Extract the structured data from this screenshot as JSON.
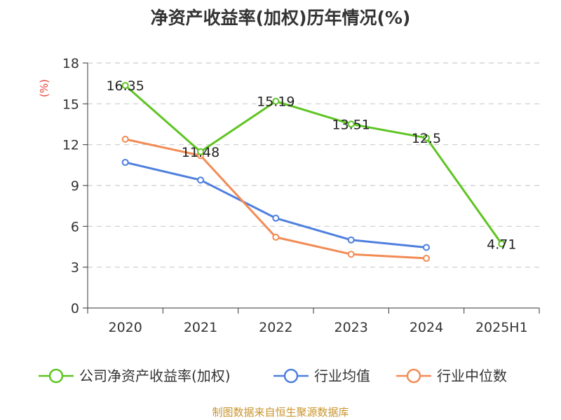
{
  "title": "净资产收益率(加权)历年情况(%)",
  "source": "制图数据来自恒生聚源数据库",
  "chart_data": {
    "type": "line",
    "title": "净资产收益率(加权)历年情况(%)",
    "ylabel": "(%)",
    "ylim": [
      0,
      18
    ],
    "yticks": [
      0,
      3,
      6,
      9,
      12,
      15,
      18
    ],
    "categories": [
      "2020",
      "2021",
      "2022",
      "2023",
      "2024",
      "2025H1"
    ],
    "grid": true,
    "legend_position": "bottom",
    "series": [
      {
        "name": "公司净资产收益率(加权)",
        "color": "#5ec422",
        "values": [
          16.35,
          11.48,
          15.19,
          13.51,
          12.5,
          4.71
        ],
        "labels": [
          "16.35",
          "11.48",
          "15.19",
          "13.51",
          "12.5",
          "4.71"
        ]
      },
      {
        "name": "行业均值",
        "color": "#4e7fde",
        "values": [
          10.7,
          9.4,
          6.6,
          5.0,
          4.45,
          null
        ]
      },
      {
        "name": "行业中位数",
        "color": "#f28b54",
        "values": [
          12.4,
          11.2,
          5.2,
          3.95,
          3.65,
          null
        ]
      }
    ]
  }
}
